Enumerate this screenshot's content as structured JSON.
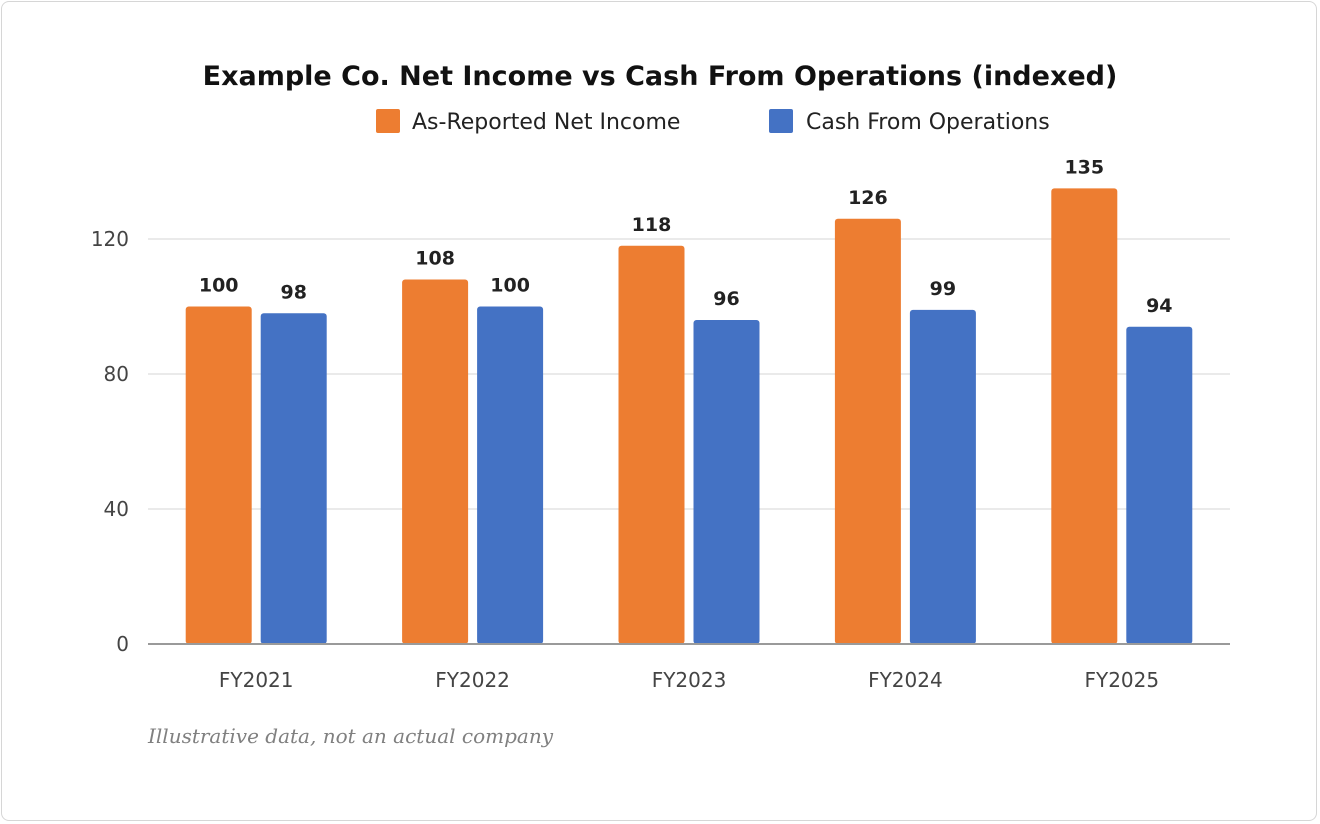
{
  "chart_data": {
    "type": "bar",
    "title": "Example Co. Net Income vs Cash From Operations (indexed)",
    "categories": [
      "FY2021",
      "FY2022",
      "FY2023",
      "FY2024",
      "FY2025"
    ],
    "series": [
      {
        "name": "As-Reported Net Income",
        "color": "#ED7D31",
        "values": [
          100,
          108,
          118,
          126,
          135
        ]
      },
      {
        "name": "Cash From Operations",
        "color": "#4472C4",
        "values": [
          98,
          100,
          96,
          99,
          94
        ]
      }
    ],
    "yticks": [
      0,
      40,
      80,
      120
    ],
    "ylim": [
      0,
      140
    ],
    "grid": true,
    "legend_position": "top",
    "caption": "Illustrative data, not an actual company"
  }
}
